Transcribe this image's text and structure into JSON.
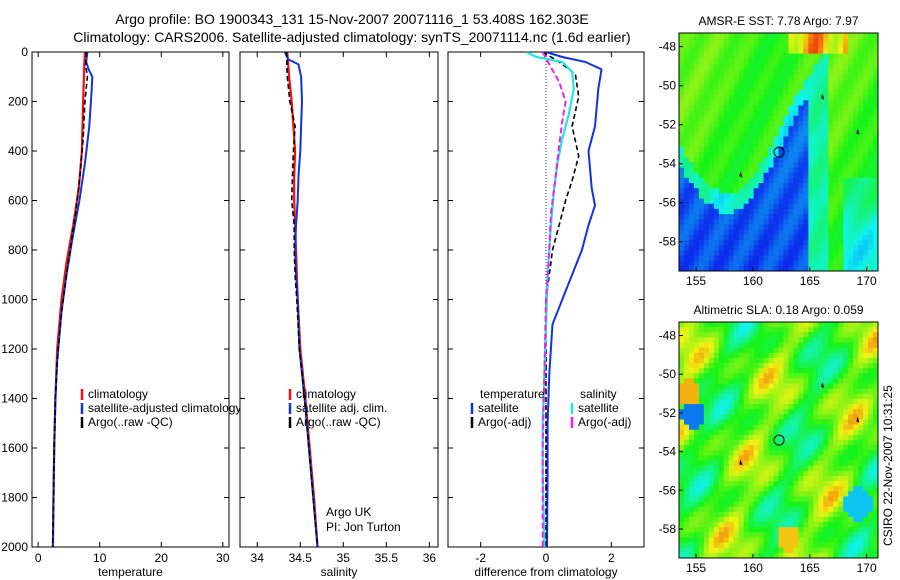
{
  "header": {
    "title_line1": "Argo profile: BO 1900343_131 15-Nov-2007 20071116_1 53.408S 162.303E",
    "title_line2": "Climatology: CARS2006. Satellite-adjusted climatology: synTS_20071114.nc (1.6d earlier)"
  },
  "footer": {
    "credit_line1": "Argo UK",
    "credit_line2": "PI: Jon Turton",
    "stamp": "CSIRO 22-Nov-2007 10:31:25"
  },
  "colors": {
    "climatology": "#ee1111",
    "satellite": "#1133dd",
    "argo": "#000000",
    "sat_salinity": "#22e5e5",
    "argo_adj_salinity": "#ee22ee"
  },
  "chart_data": [
    {
      "type": "line",
      "xlabel": "temperature",
      "ylim": [
        2000,
        0
      ],
      "xlim": [
        -1,
        31
      ],
      "xticks": [
        0,
        10,
        20,
        30
      ],
      "yticks": [
        0,
        200,
        400,
        600,
        800,
        1000,
        1200,
        1400,
        1600,
        1800,
        2000
      ],
      "legend": [
        "climatology",
        "satellite-adjusted climatology",
        "Argo(..raw -QC)"
      ],
      "legend_colors": [
        "#ee1111",
        "#1133dd",
        "#000000"
      ],
      "series": [
        {
          "color": "#ee1111",
          "dash": "",
          "width": 2.2,
          "points": [
            [
              7.6,
              0
            ],
            [
              7.5,
              50
            ],
            [
              7.3,
              200
            ],
            [
              7.1,
              400
            ],
            [
              6.6,
              550
            ],
            [
              5.7,
              700
            ],
            [
              4.6,
              850
            ],
            [
              3.8,
              1000
            ],
            [
              3.1,
              1200
            ],
            [
              2.8,
              1400
            ],
            [
              2.6,
              1600
            ],
            [
              2.5,
              1800
            ],
            [
              2.4,
              2000
            ]
          ]
        },
        {
          "color": "#1133dd",
          "dash": "",
          "width": 2.0,
          "points": [
            [
              8.0,
              0
            ],
            [
              7.8,
              40
            ],
            [
              8.2,
              70
            ],
            [
              8.8,
              100
            ],
            [
              8.7,
              150
            ],
            [
              8.3,
              300
            ],
            [
              7.6,
              450
            ],
            [
              6.7,
              600
            ],
            [
              5.6,
              750
            ],
            [
              4.6,
              900
            ],
            [
              3.8,
              1050
            ],
            [
              3.1,
              1250
            ],
            [
              2.8,
              1400
            ],
            [
              2.6,
              1600
            ],
            [
              2.5,
              1800
            ],
            [
              2.4,
              2000
            ]
          ]
        },
        {
          "color": "#000000",
          "dash": "5,3",
          "width": 1.6,
          "points": [
            [
              7.8,
              0
            ],
            [
              7.7,
              50
            ],
            [
              8.0,
              100
            ],
            [
              7.6,
              200
            ],
            [
              7.3,
              350
            ],
            [
              6.8,
              500
            ],
            [
              6.1,
              650
            ],
            [
              5.3,
              780
            ],
            [
              4.6,
              900
            ],
            [
              3.8,
              1050
            ],
            [
              3.1,
              1250
            ],
            [
              2.8,
              1400
            ],
            [
              2.6,
              1600
            ],
            [
              2.5,
              1800
            ],
            [
              2.4,
              2000
            ]
          ]
        }
      ]
    },
    {
      "type": "line",
      "xlabel": "salinity",
      "ylim": [
        2000,
        0
      ],
      "xlim": [
        33.8,
        36.1
      ],
      "xticks": [
        34,
        34.5,
        35,
        35.5,
        36
      ],
      "yticks": [
        0,
        200,
        400,
        600,
        800,
        1000,
        1200,
        1400,
        1600,
        1800,
        2000
      ],
      "legend": [
        "climatology",
        "satellite adj. clim.",
        "Argo(..raw -QC)"
      ],
      "legend_colors": [
        "#ee1111",
        "#1133dd",
        "#000000"
      ],
      "series": [
        {
          "color": "#ee1111",
          "dash": "",
          "width": 2.2,
          "points": [
            [
              34.35,
              0
            ],
            [
              34.37,
              100
            ],
            [
              34.4,
              200
            ],
            [
              34.42,
              300
            ],
            [
              34.44,
              400
            ],
            [
              34.43,
              500
            ],
            [
              34.43,
              600
            ],
            [
              34.45,
              800
            ],
            [
              34.47,
              1000
            ],
            [
              34.5,
              1200
            ],
            [
              34.56,
              1400
            ],
            [
              34.61,
              1600
            ],
            [
              34.66,
              1800
            ],
            [
              34.7,
              2000
            ]
          ]
        },
        {
          "color": "#1133dd",
          "dash": "",
          "width": 2.0,
          "points": [
            [
              34.32,
              0
            ],
            [
              34.36,
              30
            ],
            [
              34.48,
              50
            ],
            [
              34.51,
              100
            ],
            [
              34.52,
              200
            ],
            [
              34.51,
              300
            ],
            [
              34.5,
              400
            ],
            [
              34.48,
              500
            ],
            [
              34.47,
              600
            ],
            [
              34.45,
              700
            ],
            [
              34.44,
              800
            ],
            [
              34.45,
              900
            ],
            [
              34.47,
              1000
            ],
            [
              34.49,
              1200
            ],
            [
              34.55,
              1400
            ],
            [
              34.6,
              1600
            ],
            [
              34.65,
              1800
            ],
            [
              34.7,
              2000
            ]
          ]
        },
        {
          "color": "#000000",
          "dash": "5,3",
          "width": 1.6,
          "points": [
            [
              34.34,
              0
            ],
            [
              34.35,
              100
            ],
            [
              34.38,
              200
            ],
            [
              34.44,
              300
            ],
            [
              34.42,
              400
            ],
            [
              34.41,
              500
            ],
            [
              34.4,
              600
            ],
            [
              34.43,
              700
            ],
            [
              34.43,
              800
            ],
            [
              34.44,
              900
            ],
            [
              34.46,
              1000
            ],
            [
              34.49,
              1200
            ],
            [
              34.55,
              1400
            ],
            [
              34.6,
              1600
            ],
            [
              34.65,
              1800
            ],
            [
              34.7,
              2000
            ]
          ]
        }
      ]
    },
    {
      "type": "line",
      "xlabel": "difference from climatology",
      "ylim": [
        2000,
        0
      ],
      "xlim": [
        -3,
        3
      ],
      "xticks": [
        -2,
        0,
        2
      ],
      "yticks": [
        0,
        200,
        400,
        600,
        800,
        1000,
        1200,
        1400,
        1600,
        1800,
        2000
      ],
      "legend_groups": [
        {
          "title": "temperature",
          "items": [
            "satellite",
            "Argo(-adj)"
          ],
          "colors": [
            "#1133dd",
            "#000000"
          ]
        },
        {
          "title": "salinity",
          "items": [
            "satellite",
            "Argo(-adj)"
          ],
          "colors": [
            "#22e5e5",
            "#ee22ee"
          ]
        }
      ],
      "series": [
        {
          "color": "#1133dd",
          "dash": "",
          "width": 2.0,
          "points": [
            [
              0.0,
              0
            ],
            [
              0.5,
              20
            ],
            [
              1.2,
              40
            ],
            [
              1.7,
              70
            ],
            [
              1.6,
              150
            ],
            [
              1.5,
              300
            ],
            [
              1.3,
              400
            ],
            [
              1.4,
              550
            ],
            [
              1.5,
              620
            ],
            [
              1.3,
              700
            ],
            [
              1.1,
              800
            ],
            [
              0.8,
              900
            ],
            [
              0.5,
              1000
            ],
            [
              0.2,
              1100
            ],
            [
              0.1,
              1300
            ],
            [
              0.05,
              1500
            ],
            [
              0.05,
              1700
            ],
            [
              0.03,
              2000
            ]
          ]
        },
        {
          "color": "#000000",
          "dash": "5,3",
          "width": 1.6,
          "points": [
            [
              -0.1,
              0
            ],
            [
              0.4,
              40
            ],
            [
              0.9,
              90
            ],
            [
              1.0,
              180
            ],
            [
              0.8,
              300
            ],
            [
              1.0,
              420
            ],
            [
              0.8,
              520
            ],
            [
              0.6,
              600
            ],
            [
              0.4,
              700
            ],
            [
              0.2,
              800
            ],
            [
              0.1,
              900
            ],
            [
              0.0,
              1000
            ],
            [
              0.0,
              1200
            ],
            [
              0.0,
              1500
            ],
            [
              0.0,
              2000
            ]
          ]
        },
        {
          "color": "#22e5e5",
          "dash": "",
          "width": 2.2,
          "points": [
            [
              -0.6,
              0
            ],
            [
              -0.3,
              20
            ],
            [
              0.5,
              40
            ],
            [
              0.8,
              80
            ],
            [
              0.85,
              150
            ],
            [
              0.7,
              250
            ],
            [
              0.5,
              350
            ],
            [
              0.35,
              450
            ],
            [
              0.25,
              550
            ],
            [
              0.15,
              700
            ],
            [
              0.05,
              900
            ],
            [
              0.0,
              1100
            ],
            [
              -0.05,
              1300
            ],
            [
              -0.1,
              1500
            ],
            [
              -0.1,
              1700
            ],
            [
              -0.05,
              2000
            ]
          ]
        },
        {
          "color": "#ee22ee",
          "dash": "6,3",
          "width": 2.0,
          "points": [
            [
              -0.1,
              0
            ],
            [
              0.1,
              50
            ],
            [
              0.4,
              120
            ],
            [
              0.6,
              200
            ],
            [
              0.5,
              280
            ],
            [
              0.4,
              380
            ],
            [
              0.3,
              500
            ],
            [
              0.15,
              650
            ],
            [
              0.1,
              800
            ],
            [
              0.0,
              1000
            ],
            [
              -0.05,
              1300
            ],
            [
              -0.1,
              1600
            ],
            [
              -0.1,
              2000
            ]
          ]
        }
      ]
    }
  ],
  "maps": [
    {
      "title": "AMSR-E SST: 7.78 Argo: 7.97",
      "xticks": [
        155,
        160,
        165,
        170
      ],
      "yticks": [
        -48,
        -50,
        -52,
        -54,
        -56,
        -58
      ],
      "xlim": [
        153.5,
        171.0
      ],
      "ylim": [
        -59.5,
        -47.3
      ],
      "colormap": "sst"
    },
    {
      "title": "Altimetric SLA: 0.18 Argo: 0.059",
      "xticks": [
        155,
        160,
        165,
        170
      ],
      "yticks": [
        -48,
        -50,
        -52,
        -54,
        -56,
        -58
      ],
      "xlim": [
        153.5,
        171.0
      ],
      "ylim": [
        -59.5,
        -47.3
      ],
      "colormap": "sla"
    }
  ]
}
